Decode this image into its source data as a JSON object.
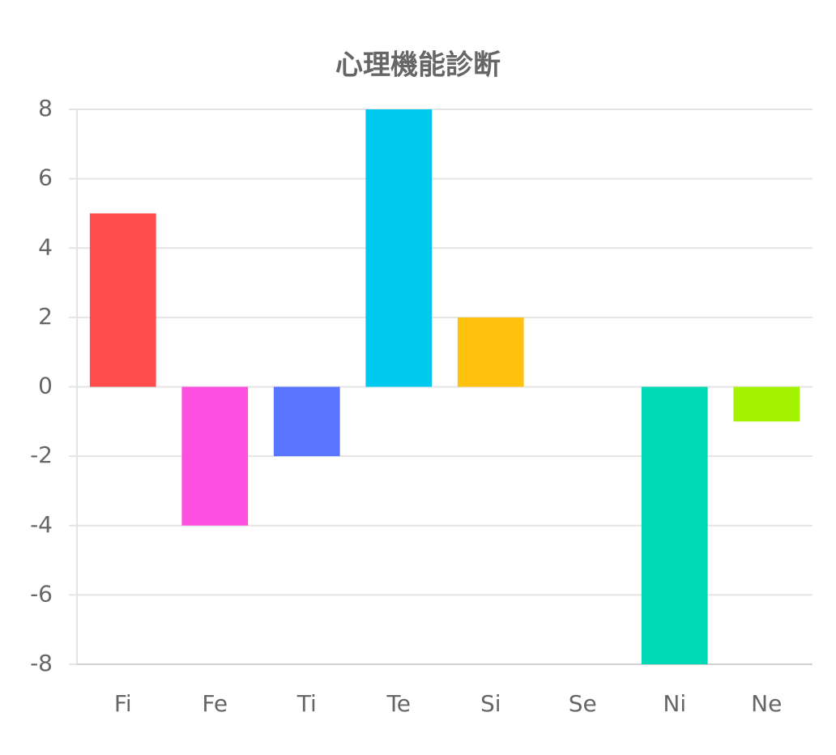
{
  "chart_data": {
    "type": "bar",
    "title": "心理機能診断",
    "categories": [
      "Fi",
      "Fe",
      "Ti",
      "Te",
      "Si",
      "Se",
      "Ni",
      "Ne"
    ],
    "values": [
      5,
      -4,
      -2,
      8,
      2,
      0,
      -8,
      -1
    ],
    "colors": [
      "#ff4d4d",
      "#ff4fe0",
      "#5975ff",
      "#00c9f0",
      "#ffc20e",
      "#9b59b6",
      "#00d9b6",
      "#a3f200"
    ],
    "ylim": [
      -8,
      8
    ],
    "yticks": [
      -8,
      -6,
      -4,
      -2,
      0,
      2,
      4,
      6,
      8
    ],
    "grid": true
  }
}
